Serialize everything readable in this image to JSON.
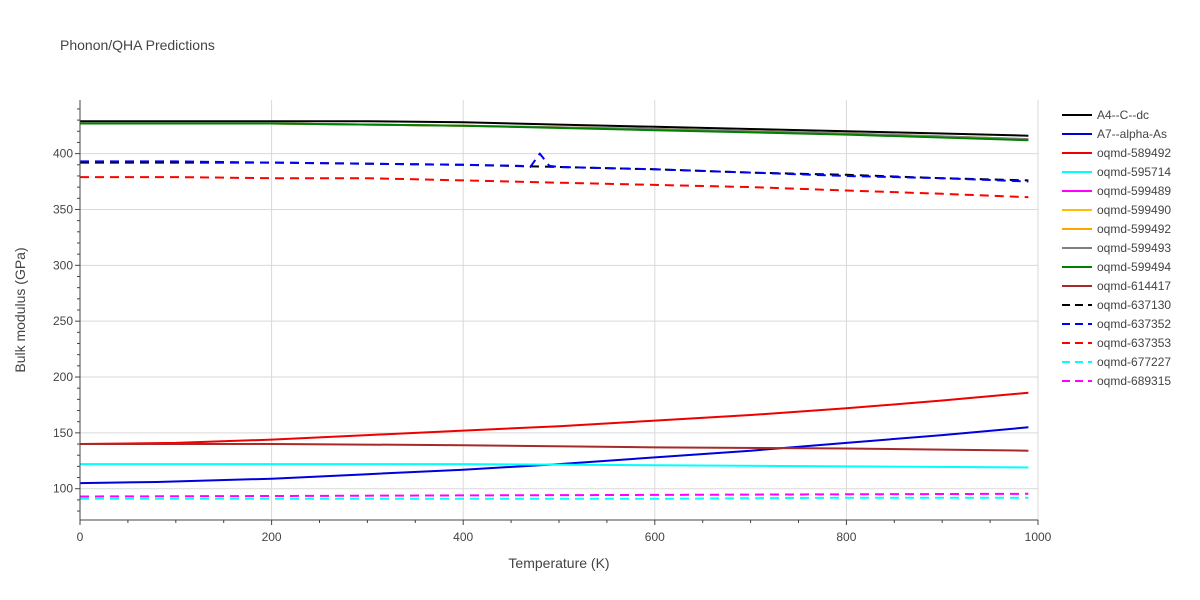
{
  "chart_data": {
    "type": "line",
    "title": "Phonon/QHA Predictions",
    "xlabel": "Temperature (K)",
    "ylabel": "Bulk modulus (GPa)",
    "xlim": [
      0,
      1000
    ],
    "ylim": [
      72,
      448
    ],
    "xticks": [
      0,
      200,
      400,
      600,
      800,
      1000
    ],
    "yticks": [
      100,
      150,
      200,
      250,
      300,
      350,
      400
    ],
    "grid": true,
    "legend_position": "right",
    "series": [
      {
        "name": "A4--C--dc",
        "color": "#000000",
        "dash": "solid",
        "x": [
          0,
          100,
          200,
          300,
          400,
          500,
          600,
          700,
          800,
          900,
          990
        ],
        "y": [
          429,
          429,
          429,
          429,
          428,
          426,
          424,
          422,
          420,
          418,
          416
        ]
      },
      {
        "name": "A7--alpha-As",
        "color": "#0000dd",
        "dash": "solid",
        "x": [
          0,
          80,
          200,
          300,
          400,
          500,
          600,
          700,
          800,
          900,
          990
        ],
        "y": [
          105,
          106,
          109,
          113,
          117,
          122,
          128,
          134,
          141,
          148,
          155
        ]
      },
      {
        "name": "oqmd-589492",
        "color": "#ee0000",
        "dash": "solid",
        "x": [
          0,
          100,
          200,
          300,
          400,
          500,
          600,
          700,
          800,
          900,
          990
        ],
        "y": [
          140,
          141,
          144,
          148,
          152,
          156,
          161,
          166,
          172,
          179,
          186
        ]
      },
      {
        "name": "oqmd-595714",
        "color": "#00ffff",
        "dash": "solid",
        "x": [
          0,
          200,
          400,
          600,
          800,
          990
        ],
        "y": [
          122,
          122,
          122,
          121,
          120,
          119
        ]
      },
      {
        "name": "oqmd-599489",
        "color": "#ff00ff",
        "dash": "solid",
        "x": [],
        "y": []
      },
      {
        "name": "oqmd-599490",
        "color": "#ffbf00",
        "dash": "solid",
        "x": [
          0,
          200,
          400,
          600,
          800,
          990
        ],
        "y": [
          427,
          427,
          425,
          422,
          418,
          413
        ]
      },
      {
        "name": "oqmd-599492",
        "color": "#ffa500",
        "dash": "solid",
        "x": [
          0,
          200,
          400,
          600,
          800,
          990
        ],
        "y": [
          427,
          427,
          425,
          422,
          418,
          413
        ]
      },
      {
        "name": "oqmd-599493",
        "color": "#808080",
        "dash": "solid",
        "x": [
          0,
          200,
          400,
          600,
          800,
          990
        ],
        "y": [
          427,
          427,
          425,
          422,
          418,
          413
        ]
      },
      {
        "name": "oqmd-599494",
        "color": "#008000",
        "dash": "solid",
        "x": [
          0,
          200,
          400,
          600,
          800,
          990
        ],
        "y": [
          427,
          427,
          425,
          421,
          417,
          412
        ]
      },
      {
        "name": "oqmd-614417",
        "color": "#a52a2a",
        "dash": "solid",
        "x": [
          0,
          200,
          400,
          600,
          800,
          990
        ],
        "y": [
          140,
          140,
          139,
          137,
          136,
          134
        ]
      },
      {
        "name": "oqmd-637130",
        "color": "#000000",
        "dash": "dash",
        "x": [
          0,
          100,
          200,
          300,
          400,
          500,
          600,
          700,
          800,
          900,
          990
        ],
        "y": [
          392,
          392,
          392,
          391,
          390,
          388,
          386,
          383,
          381,
          378,
          376
        ]
      },
      {
        "name": "oqmd-637352",
        "color": "#0000ff",
        "dash": "dash",
        "x": [
          0,
          100,
          200,
          300,
          400,
          460,
          470,
          480,
          490,
          500,
          600,
          700,
          800,
          900,
          990
        ],
        "y": [
          393,
          393,
          392,
          391,
          390,
          389,
          388,
          400,
          389,
          388,
          386,
          383,
          380,
          378,
          375
        ]
      },
      {
        "name": "oqmd-637353",
        "color": "#ff0000",
        "dash": "dash",
        "x": [
          0,
          100,
          200,
          300,
          400,
          500,
          600,
          700,
          800,
          900,
          990
        ],
        "y": [
          379,
          379,
          378,
          378,
          376,
          374,
          372,
          370,
          367,
          364,
          361
        ]
      },
      {
        "name": "oqmd-677227",
        "color": "#00ffff",
        "dash": "dash",
        "x": [
          0,
          200,
          400,
          600,
          800,
          990
        ],
        "y": [
          91,
          91,
          91,
          91,
          92,
          92
        ]
      },
      {
        "name": "oqmd-689315",
        "color": "#ff00ff",
        "dash": "dash",
        "x": [
          0,
          200,
          400,
          600,
          800,
          990
        ],
        "y": [
          93,
          93.5,
          94,
          94.5,
          95,
          95.5
        ]
      }
    ]
  }
}
